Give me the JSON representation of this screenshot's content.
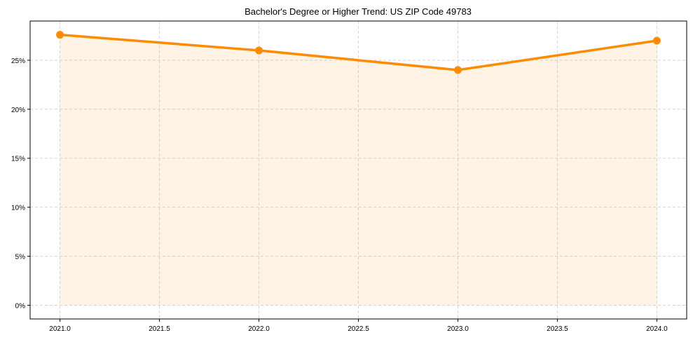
{
  "chart_data": {
    "type": "line",
    "title": "Bachelor's Degree or Higher Trend: US ZIP Code 49783",
    "xlabel": "",
    "ylabel": "",
    "x": [
      2021,
      2022,
      2023,
      2024
    ],
    "series": [
      {
        "name": "Bachelor's Degree or Higher",
        "values": [
          27.6,
          26.0,
          24.0,
          27.0
        ],
        "color": "#ff8c00",
        "fill": true
      }
    ],
    "xlim": [
      2020.85,
      2024.15
    ],
    "ylim": [
      -1.4,
      29.0
    ],
    "xticks": [
      2021.0,
      2021.5,
      2022.0,
      2022.5,
      2023.0,
      2023.5,
      2024.0
    ],
    "xtick_labels": [
      "2021.0",
      "2021.5",
      "2022.0",
      "2022.5",
      "2023.0",
      "2023.5",
      "2024.0"
    ],
    "yticks": [
      0,
      5,
      10,
      15,
      20,
      25
    ],
    "ytick_labels": [
      "0%",
      "5%",
      "10%",
      "15%",
      "20%",
      "25%"
    ],
    "grid": true,
    "legend": "none"
  }
}
